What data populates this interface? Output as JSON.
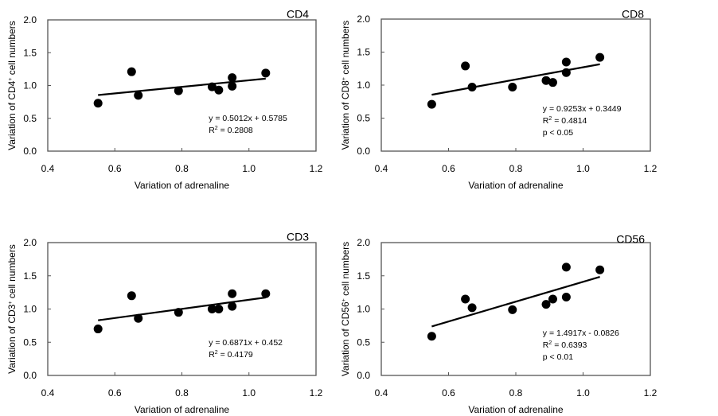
{
  "chart_data": [
    {
      "type": "scatter",
      "title": "CD4",
      "xlabel": "Variation of adrenaline",
      "ylabel_prefix": "Variation of CD4",
      "ylabel_sup": "+",
      "ylabel_suffix": " cell numbers",
      "xlim": [
        0.4,
        1.2
      ],
      "ylim": [
        0.0,
        2.0
      ],
      "xticks": [
        "0.4",
        "0.6",
        "0.8",
        "1.0",
        "1.2"
      ],
      "yticks": [
        "0.0",
        "0.5",
        "1.0",
        "1.5",
        "2.0"
      ],
      "x": [
        0.55,
        0.65,
        0.67,
        0.79,
        0.89,
        0.91,
        0.95,
        0.95,
        1.05
      ],
      "y": [
        0.73,
        1.21,
        0.85,
        0.92,
        0.98,
        0.93,
        1.12,
        0.99,
        1.19
      ],
      "trendline": {
        "slope": 0.5012,
        "intercept": 0.5785,
        "x_range": [
          0.55,
          1.05
        ]
      },
      "annotations": [
        "y = 0.5012x + 0.5785",
        "R2 = 0.2808"
      ],
      "grid": false,
      "legend": "none"
    },
    {
      "type": "scatter",
      "title": "CD8",
      "xlabel": "Variation of adrenaline",
      "ylabel_prefix": "Variation of CD8",
      "ylabel_sup": "+",
      "ylabel_suffix": " cell numbers",
      "xlim": [
        0.4,
        1.2
      ],
      "ylim": [
        0.0,
        2.0
      ],
      "xticks": [
        "0.4",
        "0.6",
        "0.8",
        "1.0",
        "1.2"
      ],
      "yticks": [
        "0.0",
        "0.5",
        "1.0",
        "1.5",
        "2.0"
      ],
      "x": [
        0.55,
        0.65,
        0.67,
        0.79,
        0.89,
        0.91,
        0.95,
        0.95,
        1.05
      ],
      "y": [
        0.71,
        1.29,
        0.97,
        0.97,
        1.07,
        1.04,
        1.35,
        1.19,
        1.42
      ],
      "trendline": {
        "slope": 0.9253,
        "intercept": 0.3449,
        "x_range": [
          0.55,
          1.05
        ]
      },
      "annotations": [
        "y = 0.9253x + 0.3449",
        "R2 = 0.4814",
        "p < 0.05"
      ],
      "grid": false,
      "legend": "none"
    },
    {
      "type": "scatter",
      "title": "CD3",
      "xlabel": "Variation of adrenaline",
      "ylabel_prefix": "Variation of CD3",
      "ylabel_sup": "+",
      "ylabel_suffix": " cell numbers",
      "xlim": [
        0.4,
        1.2
      ],
      "ylim": [
        0.0,
        2.0
      ],
      "xticks": [
        "0.4",
        "0.6",
        "0.8",
        "1.0",
        "1.2"
      ],
      "yticks": [
        "0.0",
        "0.5",
        "1.0",
        "1.5",
        "2.0"
      ],
      "x": [
        0.55,
        0.65,
        0.67,
        0.79,
        0.89,
        0.91,
        0.95,
        0.95,
        1.05
      ],
      "y": [
        0.7,
        1.2,
        0.86,
        0.95,
        1.0,
        1.0,
        1.23,
        1.04,
        1.23
      ],
      "trendline": {
        "slope": 0.6871,
        "intercept": 0.452,
        "x_range": [
          0.55,
          1.05
        ]
      },
      "annotations": [
        "y = 0.6871x + 0.452",
        "R2 = 0.4179"
      ],
      "grid": false,
      "legend": "none"
    },
    {
      "type": "scatter",
      "title": "CD56",
      "xlabel": "Variation of adrenaline",
      "ylabel_prefix": "Variation of CD56",
      "ylabel_sup": "+",
      "ylabel_suffix": " cell numbers",
      "xlim": [
        0.4,
        1.2
      ],
      "ylim": [
        0.0,
        2.0
      ],
      "xticks": [
        "0.4",
        "0.6",
        "0.8",
        "1.0",
        "1.2"
      ],
      "yticks": [
        "0.0",
        "0.5",
        "1.0",
        "1.5",
        "2.0"
      ],
      "x": [
        0.55,
        0.65,
        0.67,
        0.79,
        0.89,
        0.91,
        0.95,
        0.95,
        1.05
      ],
      "y": [
        0.59,
        1.15,
        1.02,
        0.99,
        1.07,
        1.15,
        1.63,
        1.18,
        1.59
      ],
      "trendline": {
        "slope": 1.4917,
        "intercept": -0.0826,
        "x_range": [
          0.55,
          1.05
        ]
      },
      "annotations": [
        "y = 1.4917x - 0.0826",
        "R2 = 0.6393",
        "p < 0.01"
      ],
      "grid": false,
      "legend": "none"
    }
  ],
  "colors": {
    "marker": "#000000",
    "trendline": "#000000",
    "frame": "#555555",
    "text": "#000000"
  }
}
